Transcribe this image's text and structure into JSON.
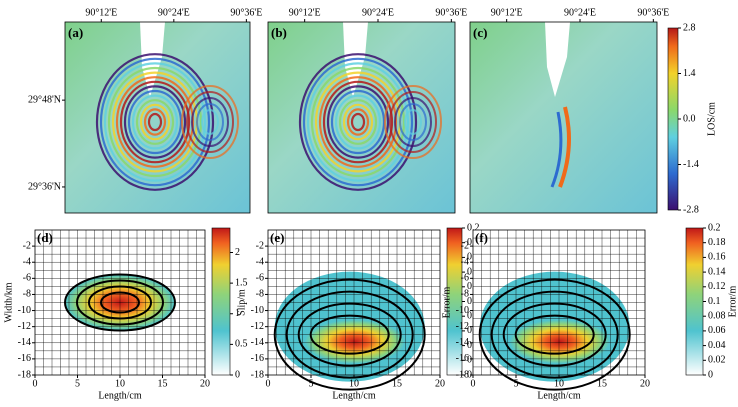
{
  "chart_data": [
    {
      "type": "map",
      "label": "(a)",
      "xlim": [
        90.1,
        90.61
      ],
      "ylim": [
        29.54,
        29.98
      ],
      "xticks": [
        {
          "value": 90.2,
          "label": "90°12'E"
        },
        {
          "value": 90.4,
          "label": "90°24'E"
        },
        {
          "value": 90.6,
          "label": "90°36'E"
        }
      ],
      "yticks": [
        {
          "value": 29.8,
          "label": "29°48'N"
        },
        {
          "value": 29.6,
          "label": "29°36'N"
        }
      ]
    },
    {
      "type": "map",
      "label": "(b)",
      "xlim": [
        90.1,
        90.61
      ],
      "xticks": [
        {
          "value": 90.2,
          "label": "90°12'E"
        },
        {
          "value": 90.4,
          "label": "90°24'E"
        },
        {
          "value": 90.6,
          "label": "90°36'E"
        }
      ]
    },
    {
      "type": "map",
      "label": "(c)",
      "xlim": [
        90.1,
        90.61
      ],
      "xticks": [
        {
          "value": 90.2,
          "label": "90°12'E"
        },
        {
          "value": 90.4,
          "label": "90°24'E"
        },
        {
          "value": 90.6,
          "label": "90°36'E"
        }
      ],
      "colorbar": {
        "label": "LOS/cm",
        "lim": [
          -2.8,
          2.8
        ],
        "ticks": [
          2.8,
          1.4,
          {
            "value": 0,
            "label": "0.0"
          },
          -1.4,
          -2.8
        ]
      }
    },
    {
      "type": "contour",
      "label": "(d)",
      "xlabel": "Length/cm",
      "ylabel": "Width/km",
      "xlim": [
        0,
        20
      ],
      "ylim": [
        -18,
        0
      ],
      "xticks": [
        0,
        5,
        10,
        15,
        20
      ],
      "yticks": [
        -18,
        -16,
        -14,
        -12,
        -10,
        -8,
        -6,
        -4,
        -2
      ],
      "colorbar": {
        "lim": [
          0,
          2.4
        ],
        "ticks": [
          0,
          0.5,
          1,
          1.5,
          2
        ]
      }
    },
    {
      "type": "contour",
      "label": "(e)",
      "xlabel": "Length/cm",
      "ylabel": "Slip/m",
      "xlim": [
        0,
        20
      ],
      "ylim": [
        -18,
        0
      ],
      "xticks": [
        0,
        5,
        10,
        15,
        20
      ],
      "yticks": [
        -18,
        -16,
        -14,
        -12,
        -10,
        -8,
        -6,
        -4,
        -2
      ],
      "colorbar": {
        "lim": [
          0,
          0.2
        ],
        "ticks": [
          0,
          0.02,
          0.04,
          0.06,
          0.08,
          0.1,
          0.12,
          0.14,
          0.16,
          0.18,
          0.2
        ]
      }
    },
    {
      "type": "contour",
      "label": "(f)",
      "xlabel": "Length/cm",
      "ylabel": "Error/m",
      "xlim": [
        0,
        20
      ],
      "ylim": [
        -18,
        0
      ],
      "xticks": [
        0,
        5,
        10,
        15,
        20
      ],
      "yticks": [
        -18,
        -16,
        -14,
        -12,
        -10,
        -8,
        -6,
        -4,
        -2
      ],
      "colorbar": {
        "label": "Error/m",
        "lim": [
          0,
          0.2
        ],
        "ticks": [
          0,
          0.02,
          0.04,
          0.06,
          0.08,
          0.1,
          0.12,
          0.14,
          0.16,
          0.18,
          0.2
        ]
      }
    }
  ]
}
